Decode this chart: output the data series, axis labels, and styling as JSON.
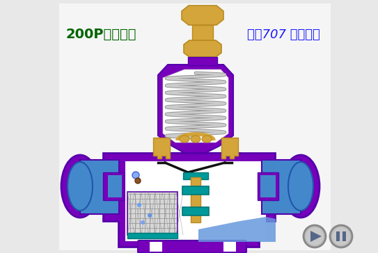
{
  "bg_color": "#e8e8e8",
  "title_left": "200P型减压阀",
  "title_right": "化工707 剪辑制作",
  "title_left_color": "#006400",
  "title_right_color": "#1a1aff",
  "purple": "#7700bb",
  "purple_dark": "#5500aa",
  "gold": "#d4a53a",
  "gold_dark": "#b88a20",
  "teal": "#009999",
  "light_blue": "#4488cc",
  "light_blue2": "#6699dd",
  "white": "#ffffff",
  "gray": "#aaaaaa",
  "red": "#dd0000",
  "spring_color": "#cccccc",
  "spring_dark": "#999999",
  "diaphragm_color": "#222222",
  "bg_valve": "#f5f5f5"
}
